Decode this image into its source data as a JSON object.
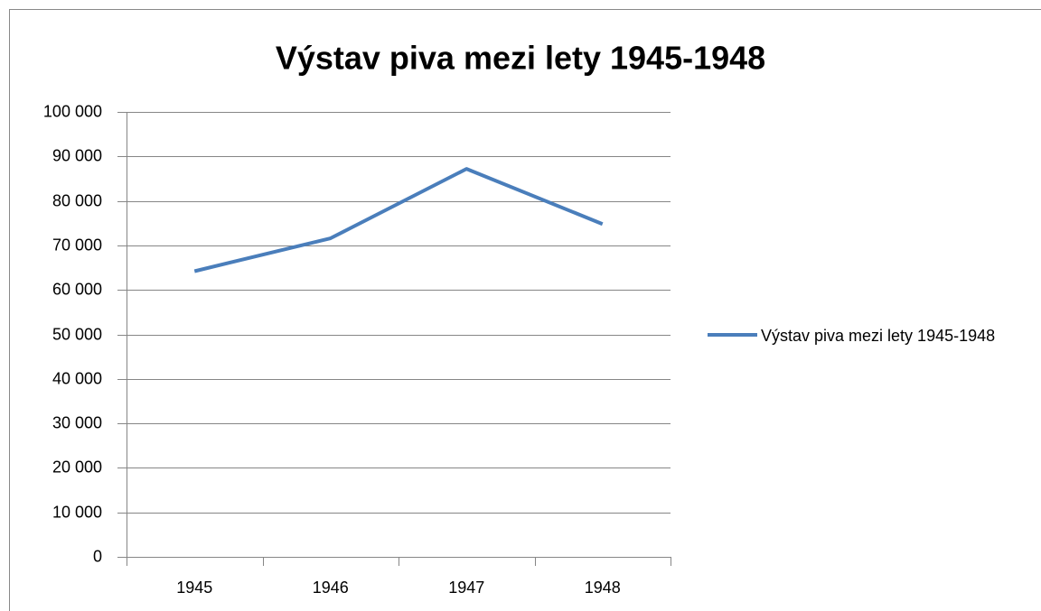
{
  "chart_data": {
    "type": "line",
    "title": "Výstav piva mezi lety 1945-1948",
    "categories": [
      "1945",
      "1946",
      "1947",
      "1948"
    ],
    "series": [
      {
        "name": "Výstav piva mezi lety 1945-1948",
        "color": "#4a7ebb",
        "values": [
          64200,
          71600,
          87200,
          74800
        ]
      }
    ],
    "ylim": [
      0,
      100000
    ],
    "yticks": [
      0,
      {
        "value": 10000,
        "label": "10 000"
      },
      {
        "value": 20000,
        "label": "20 000"
      },
      {
        "value": 30000,
        "label": "30 000"
      },
      {
        "value": 40000,
        "label": "40 000"
      },
      {
        "value": 50000,
        "label": "50 000"
      },
      {
        "value": 60000,
        "label": "60 000"
      },
      {
        "value": 70000,
        "label": "70 000"
      },
      {
        "value": 80000,
        "label": "80 000"
      },
      {
        "value": 90000,
        "label": "90 000"
      },
      {
        "value": 100000,
        "label": "100 000"
      }
    ],
    "grid": true,
    "legend": "right"
  }
}
